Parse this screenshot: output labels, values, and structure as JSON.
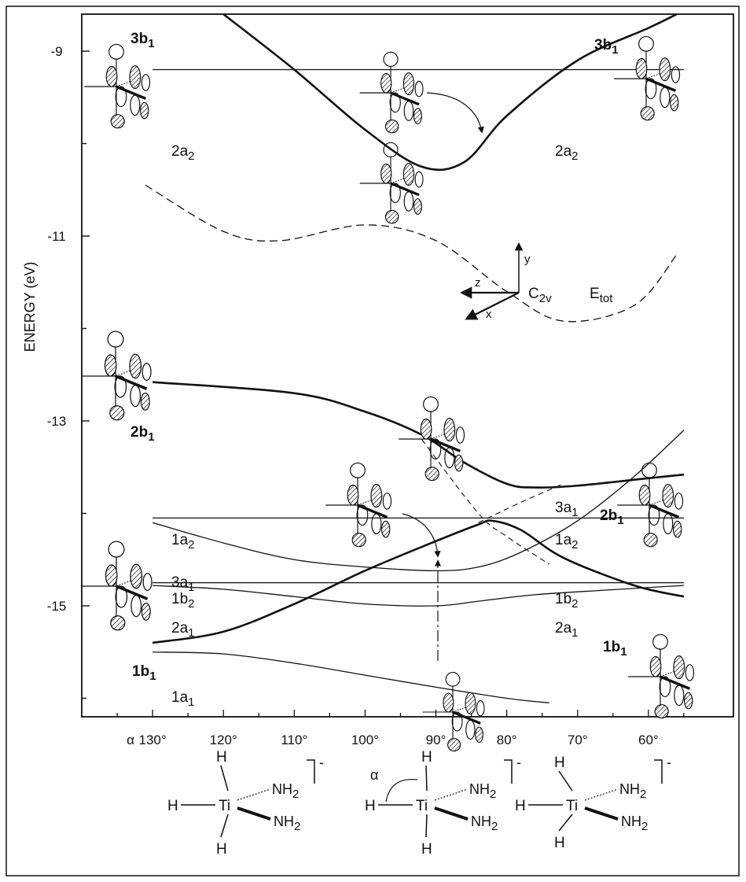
{
  "chart_data": {
    "type": "line",
    "ylabel": "ENERGY (eV)",
    "y_ticks": [
      "-9",
      "-11",
      "-13",
      "-15"
    ],
    "ylim": [
      -16.2,
      -8.6
    ],
    "x_ticks": [
      "130°",
      "120°",
      "110°",
      "100°",
      "90°",
      "80°",
      "70°",
      "60°"
    ],
    "x_symbol": "α",
    "xlim": [
      140,
      48
    ],
    "coord_label": "C",
    "coord_label_sub": "2v",
    "axis_letters": {
      "x": "x",
      "y": "y",
      "z": "z"
    },
    "series": [
      {
        "id": "3b1",
        "name_main": "3b",
        "name_sub": "1",
        "bold": true,
        "style": "thick",
        "label_side": "both",
        "x": [
          120,
          110,
          100,
          92,
          86,
          80,
          70,
          60,
          56
        ],
        "y": [
          -8.6,
          -9.2,
          -9.85,
          -10.25,
          -10.2,
          -9.7,
          -9.1,
          -8.75,
          -8.6
        ]
      },
      {
        "id": "2a2",
        "name_main": "2a",
        "name_sub": "2",
        "bold": false,
        "style": "thin",
        "label_side": "both",
        "x": [
          130,
          55
        ],
        "y": [
          -9.2,
          -9.2
        ]
      },
      {
        "id": "Etot",
        "name_main": "E",
        "name_sub": "tot",
        "bold": false,
        "style": "dashed",
        "label_side": "right",
        "x": [
          131,
          120,
          112,
          100,
          90,
          80,
          72,
          62,
          56
        ],
        "y": [
          -10.45,
          -10.95,
          -11.05,
          -10.88,
          -11.05,
          -11.6,
          -11.92,
          -11.75,
          -11.2
        ]
      },
      {
        "id": "2b1",
        "name_main": "2b",
        "name_sub": "1",
        "bold": true,
        "style": "thick",
        "label_side": "both",
        "x": [
          130,
          110,
          100,
          92,
          86,
          80,
          76,
          70,
          60,
          55
        ],
        "y": [
          -12.58,
          -12.7,
          -12.9,
          -13.15,
          -13.45,
          -13.68,
          -13.72,
          -13.7,
          -13.62,
          -13.58
        ]
      },
      {
        "id": "3a1",
        "name_main": "3a",
        "name_sub": "1",
        "bold": false,
        "style": "thin",
        "label_side": "both",
        "x": [
          130,
          120,
          110,
          100,
          90,
          84,
          78,
          70,
          62,
          55
        ],
        "y": [
          -14.1,
          -14.32,
          -14.5,
          -14.58,
          -14.62,
          -14.58,
          -14.42,
          -14.08,
          -13.6,
          -13.1
        ]
      },
      {
        "id": "1a2",
        "name_main": "1a",
        "name_sub": "2",
        "bold": false,
        "style": "thin",
        "label_side": "both",
        "x": [
          130,
          55
        ],
        "y": [
          -14.05,
          -14.05
        ]
      },
      {
        "id": "1b2",
        "name_main": "1b",
        "name_sub": "2",
        "bold": false,
        "style": "thin",
        "label_side": "both",
        "x": [
          130,
          55
        ],
        "y": [
          -14.75,
          -14.75
        ]
      },
      {
        "id": "2a1",
        "name_main": "2a",
        "name_sub": "1",
        "bold": false,
        "style": "thin",
        "label_side": "both",
        "x": [
          130,
          120,
          110,
          100,
          90,
          84,
          76,
          66,
          55
        ],
        "y": [
          -14.78,
          -14.82,
          -14.9,
          -14.98,
          -15.0,
          -14.95,
          -14.88,
          -14.83,
          -14.78
        ]
      },
      {
        "id": "1b1",
        "name_main": "1b",
        "name_sub": "1",
        "bold": true,
        "style": "thick",
        "label_side": "both",
        "x": [
          130,
          120,
          110,
          100,
          90,
          84,
          82,
          78,
          72,
          62,
          55
        ],
        "y": [
          -15.4,
          -15.28,
          -14.98,
          -14.62,
          -14.3,
          -14.12,
          -14.08,
          -14.18,
          -14.48,
          -14.78,
          -14.9
        ]
      },
      {
        "id": "1a1",
        "name_main": "1a",
        "name_sub": "1",
        "bold": false,
        "style": "thin",
        "label_side": "left",
        "x": [
          130,
          120,
          110,
          100,
          90,
          80,
          74
        ],
        "y": [
          -15.5,
          -15.52,
          -15.62,
          -15.75,
          -15.88,
          -16.0,
          -16.05
        ]
      },
      {
        "id": "diabatic-a",
        "name_main": "",
        "name_sub": "",
        "bold": false,
        "style": "dashed-thin",
        "label_side": "none",
        "x": [
          92,
          84,
          80,
          74
        ],
        "y": [
          -13.2,
          -14.0,
          -14.25,
          -14.55
        ]
      },
      {
        "id": "diabatic-b",
        "name_main": "",
        "name_sub": "",
        "bold": false,
        "style": "dashed-thin",
        "label_side": "none",
        "x": [
          84,
          78,
          72
        ],
        "y": [
          -14.1,
          -13.88,
          -13.68
        ]
      }
    ]
  },
  "structures": [
    {
      "metal": "Ti",
      "ligand_h": "H",
      "ligand_n": "NH",
      "ligand_n_sub": "2",
      "charge": "-"
    },
    {
      "metal": "Ti",
      "ligand_h": "H",
      "ligand_n": "NH",
      "ligand_n_sub": "2",
      "charge": "-",
      "angle_label": "α"
    },
    {
      "metal": "Ti",
      "ligand_h": "H",
      "ligand_n": "NH",
      "ligand_n_sub": "2",
      "charge": "-"
    }
  ]
}
